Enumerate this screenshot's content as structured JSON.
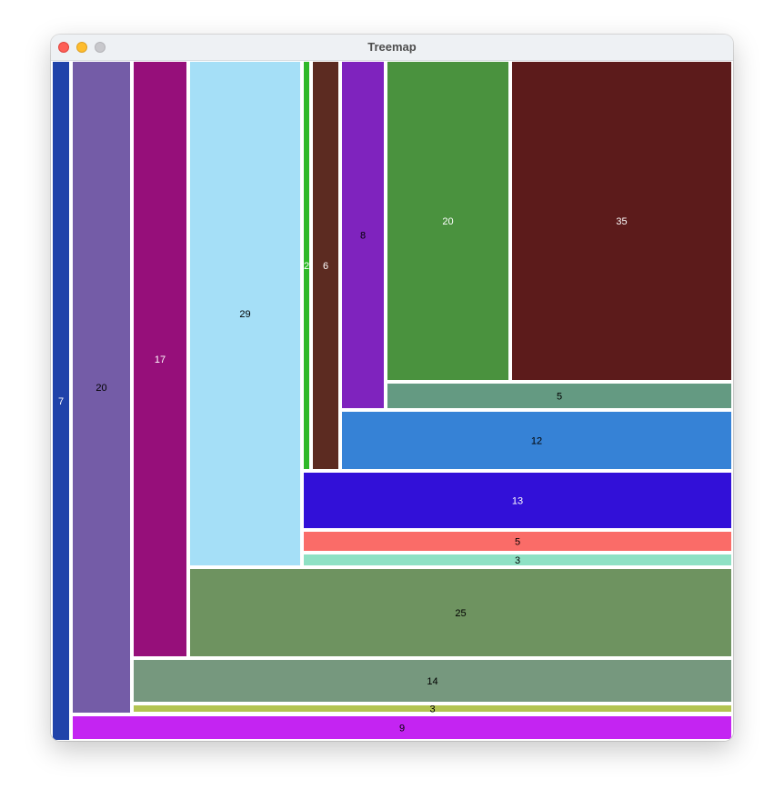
{
  "window": {
    "title": "Treemap"
  },
  "chart_data": {
    "type": "treemap",
    "title": "",
    "cells": [
      {
        "value": 7,
        "color": "#2043aa",
        "label_color": "#ffffff"
      },
      {
        "value": 20,
        "color": "#745ca7",
        "label_color": "#000000"
      },
      {
        "value": 9,
        "color": "#c424f2",
        "label_color": "#000000"
      },
      {
        "value": 17,
        "color": "#960f7a",
        "label_color": "#ffffff"
      },
      {
        "value": 14,
        "color": "#76987e",
        "label_color": "#000000"
      },
      {
        "value": 3,
        "color": "#b3c452",
        "label_color": "#000000"
      },
      {
        "value": 29,
        "color": "#a5dff7",
        "label_color": "#000000"
      },
      {
        "value": 25,
        "color": "#6e9360",
        "label_color": "#000000"
      },
      {
        "value": 2,
        "color": "#2fb829",
        "label_color": "#ffffff"
      },
      {
        "value": 6,
        "color": "#5c2b21",
        "label_color": "#ffffff"
      },
      {
        "value": 13,
        "color": "#3210d8",
        "label_color": "#ffffff"
      },
      {
        "value": 5,
        "color": "#fa6c68",
        "label_color": "#000000"
      },
      {
        "value": 3,
        "color": "#8ee1c4",
        "label_color": "#000000"
      },
      {
        "value": 8,
        "color": "#7f23be",
        "label_color": "#000000"
      },
      {
        "value": 12,
        "color": "#3682d6",
        "label_color": "#000000"
      },
      {
        "value": 20,
        "color": "#4a923e",
        "label_color": "#ffffff"
      },
      {
        "value": 35,
        "color": "#5c1b1b",
        "label_color": "#ffffff"
      },
      {
        "value": 5,
        "color": "#649a82",
        "label_color": "#000000"
      }
    ]
  }
}
